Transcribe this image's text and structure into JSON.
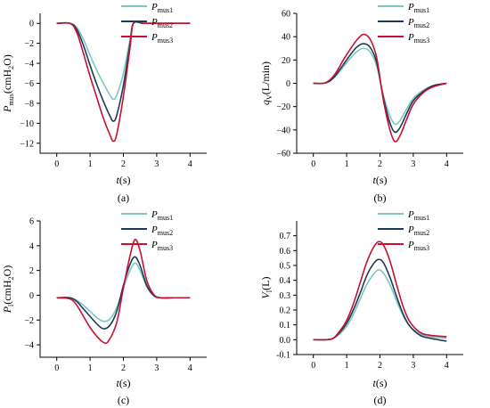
{
  "figure": {
    "legend_entries": [
      {
        "main": "P",
        "sub": "mus1",
        "color": "#7fc6be"
      },
      {
        "main": "P",
        "sub": "mus2",
        "color": "#1b3b59"
      },
      {
        "main": "P",
        "sub": "mus3",
        "color": "#c8102e"
      }
    ]
  },
  "chart_data": [
    {
      "type": "line",
      "caption": "(a)",
      "xlabel": {
        "main": "t",
        "rest": "(s)"
      },
      "ylabel": {
        "main": "P",
        "sub": "mus",
        "rest": "(cmH",
        "sub2": "2",
        "tail": "O)"
      },
      "xlim": [
        -0.5,
        4.5
      ],
      "ylim": [
        -13,
        1
      ],
      "xticks": [
        0,
        1,
        2,
        3,
        4
      ],
      "yticks": [
        0,
        -2,
        -4,
        -6,
        -8,
        -10,
        -12
      ],
      "grid": false,
      "legend_position": "top-right",
      "series": [
        {
          "name": "Pmus1",
          "x": [
            0,
            0.4,
            0.6,
            0.8,
            1.0,
            1.2,
            1.4,
            1.6,
            1.7,
            1.8,
            2.0,
            2.2,
            2.3,
            2.6,
            3.0,
            4.0
          ],
          "y": [
            0,
            0,
            -0.4,
            -1.6,
            -3.2,
            -4.7,
            -6.0,
            -7.2,
            -7.6,
            -7.2,
            -5.0,
            -1.6,
            0,
            0,
            0,
            0
          ]
        },
        {
          "name": "Pmus2",
          "x": [
            0,
            0.4,
            0.6,
            0.8,
            1.0,
            1.2,
            1.4,
            1.6,
            1.7,
            1.8,
            2.0,
            2.2,
            2.3,
            2.6,
            3.0,
            4.0
          ],
          "y": [
            0,
            0,
            -0.6,
            -2.2,
            -4.2,
            -6.1,
            -7.8,
            -9.3,
            -9.8,
            -9.2,
            -6.2,
            -2.0,
            0,
            0,
            0,
            0
          ]
        },
        {
          "name": "Pmus3",
          "x": [
            0,
            0.4,
            0.6,
            0.8,
            1.0,
            1.2,
            1.4,
            1.6,
            1.7,
            1.8,
            2.0,
            2.2,
            2.3,
            2.6,
            3.0,
            4.0
          ],
          "y": [
            0,
            0,
            -0.9,
            -3.0,
            -5.3,
            -7.4,
            -9.5,
            -11.2,
            -11.8,
            -11.1,
            -7.3,
            -2.4,
            0,
            0,
            0,
            0
          ]
        }
      ]
    },
    {
      "type": "line",
      "caption": "(b)",
      "xlabel": {
        "main": "t",
        "rest": "(s)"
      },
      "ylabel": {
        "main": "q",
        "sub": "V",
        "rest": "(L/min)"
      },
      "xlim": [
        -0.5,
        4.5
      ],
      "ylim": [
        -60,
        60
      ],
      "xticks": [
        0,
        1,
        2,
        3,
        4
      ],
      "yticks": [
        60,
        40,
        20,
        0,
        -20,
        -40,
        -60
      ],
      "grid": false,
      "legend_position": "top-right",
      "series": [
        {
          "name": "Pmus1",
          "x": [
            0,
            0.3,
            0.5,
            0.7,
            0.9,
            1.1,
            1.3,
            1.5,
            1.7,
            1.9,
            2.1,
            2.3,
            2.45,
            2.6,
            2.8,
            3.0,
            3.3,
            3.6,
            4.0
          ],
          "y": [
            0,
            0,
            2,
            7,
            14,
            21,
            27,
            30,
            27,
            15,
            -10,
            -28,
            -35,
            -32,
            -22,
            -13,
            -6,
            -2,
            0
          ]
        },
        {
          "name": "Pmus2",
          "x": [
            0,
            0.3,
            0.5,
            0.7,
            0.9,
            1.1,
            1.3,
            1.5,
            1.7,
            1.9,
            2.1,
            2.3,
            2.45,
            2.6,
            2.8,
            3.0,
            3.3,
            3.6,
            4.0
          ],
          "y": [
            0,
            0,
            2,
            8,
            16,
            24,
            31,
            34,
            31,
            18,
            -12,
            -34,
            -42,
            -38,
            -26,
            -15,
            -7,
            -2,
            0
          ]
        },
        {
          "name": "Pmus3",
          "x": [
            0,
            0.3,
            0.5,
            0.7,
            0.9,
            1.1,
            1.3,
            1.5,
            1.7,
            1.9,
            2.1,
            2.3,
            2.45,
            2.6,
            2.8,
            3.0,
            3.3,
            3.6,
            4.0
          ],
          "y": [
            0,
            0,
            3,
            10,
            20,
            29,
            37,
            42,
            38,
            22,
            -14,
            -40,
            -50,
            -45,
            -31,
            -18,
            -8,
            -3,
            0
          ]
        }
      ]
    },
    {
      "type": "line",
      "caption": "(c)",
      "xlabel": {
        "main": "t",
        "rest": "(s)"
      },
      "ylabel": {
        "main": "P",
        "sub": "l",
        "rest": "(cmH",
        "sub2": "2",
        "tail": "O)"
      },
      "xlim": [
        -0.5,
        4.5
      ],
      "ylim": [
        -5,
        6
      ],
      "xticks": [
        0,
        1,
        2,
        3,
        4
      ],
      "yticks": [
        6,
        4,
        2,
        0,
        -2,
        -4
      ],
      "grid": false,
      "legend_position": "top-right",
      "series": [
        {
          "name": "Pmus1",
          "x": [
            0,
            0.4,
            0.6,
            0.8,
            1.0,
            1.2,
            1.4,
            1.6,
            1.8,
            2.0,
            2.2,
            2.35,
            2.5,
            2.7,
            2.9,
            3.1,
            3.5,
            4.0
          ],
          "y": [
            -0.2,
            -0.2,
            -0.4,
            -0.8,
            -1.3,
            -1.8,
            -2.1,
            -1.9,
            -1.0,
            0.6,
            2.0,
            2.6,
            2.0,
            0.7,
            0.0,
            -0.2,
            -0.2,
            -0.2
          ]
        },
        {
          "name": "Pmus2",
          "x": [
            0,
            0.4,
            0.6,
            0.8,
            1.0,
            1.2,
            1.4,
            1.6,
            1.8,
            2.0,
            2.2,
            2.35,
            2.5,
            2.7,
            2.9,
            3.1,
            3.5,
            4.0
          ],
          "y": [
            -0.2,
            -0.2,
            -0.5,
            -1.1,
            -1.7,
            -2.3,
            -2.7,
            -2.4,
            -1.3,
            0.8,
            2.5,
            3.1,
            2.4,
            0.8,
            0.0,
            -0.2,
            -0.2,
            -0.2
          ]
        },
        {
          "name": "Pmus3",
          "x": [
            0,
            0.4,
            0.6,
            0.8,
            1.0,
            1.2,
            1.4,
            1.55,
            1.8,
            2.0,
            2.2,
            2.35,
            2.5,
            2.7,
            2.9,
            3.1,
            3.5,
            4.0
          ],
          "y": [
            -0.2,
            -0.3,
            -0.8,
            -1.7,
            -2.6,
            -3.3,
            -3.8,
            -3.7,
            -2.2,
            0.6,
            3.2,
            4.5,
            3.6,
            1.2,
            0.1,
            -0.2,
            -0.2,
            -0.2
          ]
        }
      ]
    },
    {
      "type": "line",
      "caption": "(d)",
      "xlabel": {
        "main": "t",
        "rest": "(s)"
      },
      "ylabel": {
        "main": "V",
        "sub": "l",
        "rest": "(L)"
      },
      "xlim": [
        -0.5,
        4.5
      ],
      "ylim": [
        -0.1,
        0.8
      ],
      "xticks": [
        0,
        1,
        2,
        3,
        4
      ],
      "yticks": [
        0.7,
        0.6,
        0.5,
        0.4,
        0.3,
        0.2,
        0.1,
        0.0,
        -0.1
      ],
      "ytick_labels": [
        "0.7",
        "0.6",
        "0.5",
        "0.4",
        "0.3",
        "0.2",
        "0.1",
        "0.0",
        "-0.1"
      ],
      "grid": false,
      "legend_position": "top-right",
      "series": [
        {
          "name": "Pmus1",
          "x": [
            0,
            0.4,
            0.6,
            0.8,
            1.0,
            1.2,
            1.4,
            1.6,
            1.8,
            1.95,
            2.1,
            2.3,
            2.5,
            2.7,
            2.9,
            3.2,
            3.5,
            4.0
          ],
          "y": [
            0,
            0,
            0.01,
            0.04,
            0.09,
            0.17,
            0.27,
            0.37,
            0.44,
            0.47,
            0.45,
            0.37,
            0.26,
            0.16,
            0.09,
            0.04,
            0.02,
            0.01
          ]
        },
        {
          "name": "Pmus2",
          "x": [
            0,
            0.4,
            0.6,
            0.8,
            1.0,
            1.2,
            1.4,
            1.6,
            1.8,
            1.95,
            2.1,
            2.3,
            2.5,
            2.7,
            2.9,
            3.2,
            3.5,
            4.0
          ],
          "y": [
            0,
            0,
            0.01,
            0.05,
            0.11,
            0.2,
            0.31,
            0.43,
            0.51,
            0.54,
            0.52,
            0.42,
            0.29,
            0.17,
            0.09,
            0.03,
            0.01,
            -0.01
          ]
        },
        {
          "name": "Pmus3",
          "x": [
            0,
            0.4,
            0.6,
            0.8,
            1.0,
            1.2,
            1.4,
            1.6,
            1.8,
            1.95,
            2.1,
            2.3,
            2.5,
            2.7,
            2.9,
            3.2,
            3.5,
            4.0
          ],
          "y": [
            0,
            0,
            0.01,
            0.06,
            0.13,
            0.24,
            0.38,
            0.52,
            0.62,
            0.66,
            0.64,
            0.53,
            0.37,
            0.22,
            0.12,
            0.05,
            0.03,
            0.02
          ]
        }
      ]
    }
  ]
}
